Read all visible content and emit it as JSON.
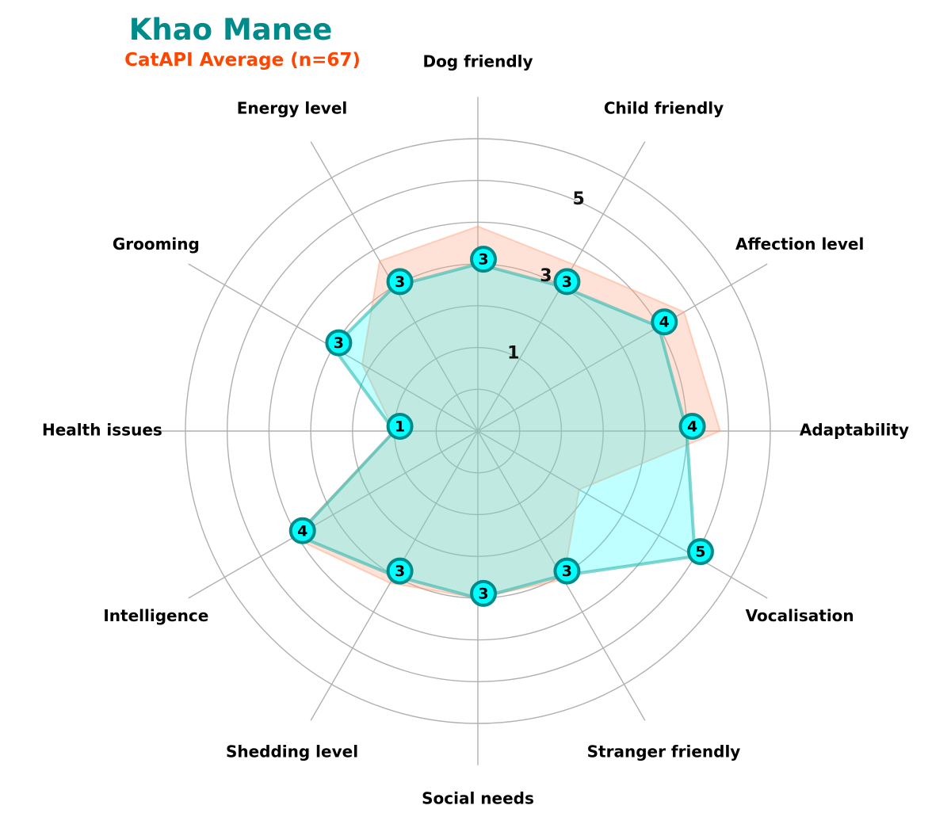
{
  "chart_data": {
    "type": "radar",
    "title": "Khao Manee",
    "subtitle": "CatAPI Average (n=67)",
    "axes": [
      "Adaptability",
      "Affection level",
      "Child friendly",
      "Dog friendly",
      "Energy level",
      "Grooming",
      "Health issues",
      "Intelligence",
      "Shedding level",
      "Social needs",
      "Stranger friendly",
      "Vocalisation"
    ],
    "rlim": [
      -1,
      5
    ],
    "ring_labels": [
      "1",
      "3",
      "5"
    ],
    "series": [
      {
        "values": [
          4,
          4,
          3,
          3,
          3,
          3,
          1,
          4,
          3,
          3,
          3,
          5
        ]
      },
      {
        "values": [
          4.8,
          4.7,
          3.6,
          3.9,
          3.7,
          2.2,
          1.0,
          4.1,
          3.2,
          3.0,
          3.1,
          1.8
        ]
      }
    ],
    "colors": {
      "title": "#008b8b",
      "subtitle": "#ff4500",
      "breed_fill": "#00ffff",
      "breed_line": "#20b2aa",
      "average_fill": "#ffa07a",
      "average_line": "#ffa07a",
      "marker_fill": "#00ffff",
      "marker_edge": "#008b8b",
      "grid": "#b0b0b0"
    }
  }
}
